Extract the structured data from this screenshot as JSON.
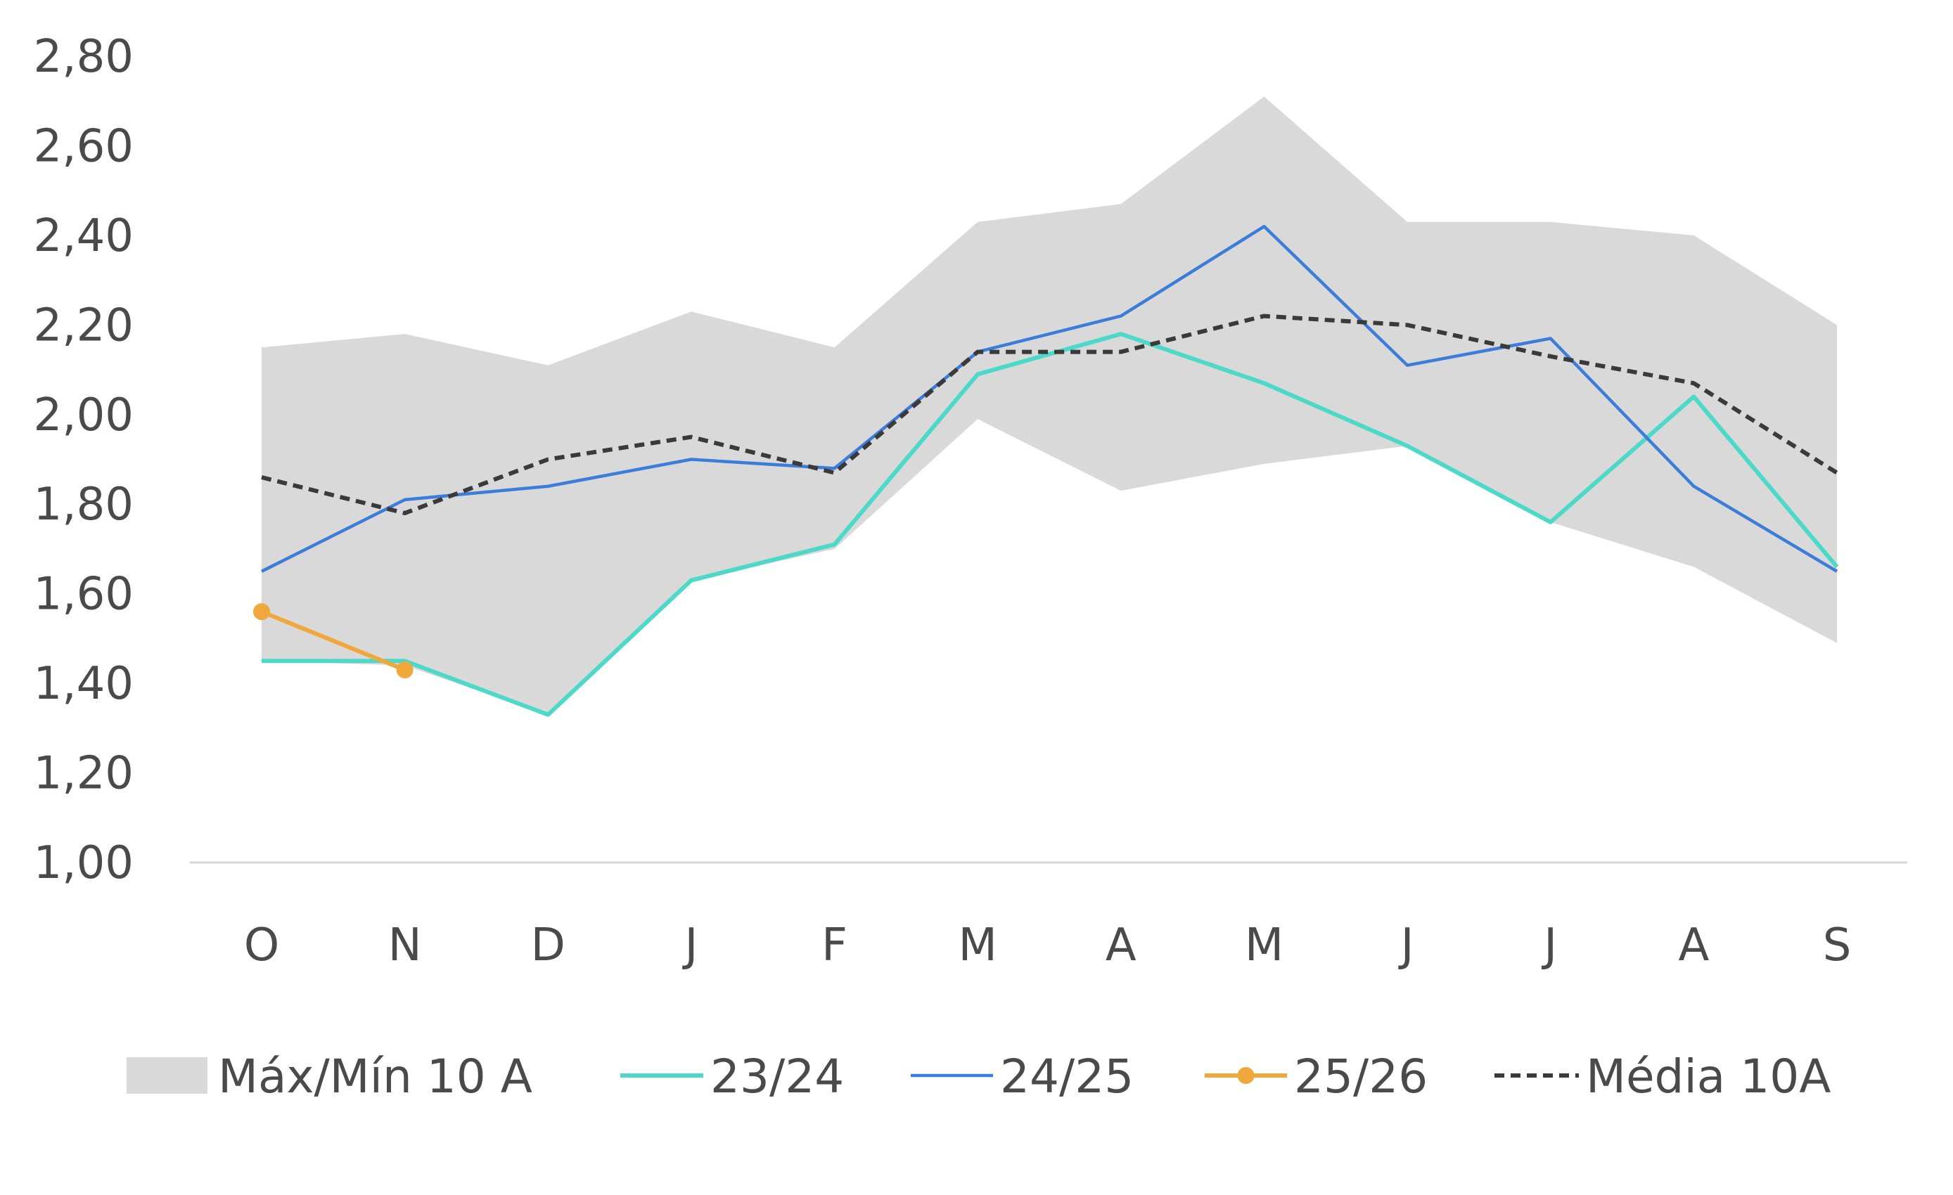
{
  "chart_data": {
    "type": "line",
    "title": "",
    "xlabel": "",
    "ylabel": "",
    "categories": [
      "O",
      "N",
      "D",
      "J",
      "F",
      "M",
      "A",
      "M",
      "J",
      "J",
      "A",
      "S"
    ],
    "ylim": [
      1.0,
      2.8
    ],
    "yticks": [
      1.0,
      1.2,
      1.4,
      1.6,
      1.8,
      2.0,
      2.2,
      2.4,
      2.6,
      2.8
    ],
    "ytick_labels": [
      "1,00",
      "1,20",
      "1,40",
      "1,60",
      "1,80",
      "2,00",
      "2,20",
      "2,40",
      "2,60",
      "2,80"
    ],
    "grid": false,
    "legend_position": "bottom",
    "band": {
      "name": "Máx/Mín 10 A",
      "color": "#d9d9d9",
      "max": [
        2.15,
        2.18,
        2.11,
        2.23,
        2.15,
        2.43,
        2.47,
        2.71,
        2.43,
        2.43,
        2.4,
        2.2
      ],
      "min": [
        1.45,
        1.44,
        1.33,
        1.63,
        1.7,
        1.99,
        1.83,
        1.89,
        1.93,
        1.76,
        1.66,
        1.49
      ]
    },
    "series": [
      {
        "name": "23/24",
        "color": "#4dd9c9",
        "style": "solid",
        "values": [
          1.45,
          1.45,
          1.33,
          1.63,
          1.71,
          2.09,
          2.18,
          2.07,
          1.93,
          1.76,
          2.04,
          1.66
        ]
      },
      {
        "name": "24/25",
        "color": "#3b7dd8",
        "style": "solid",
        "values": [
          1.65,
          1.81,
          1.84,
          1.9,
          1.88,
          2.14,
          2.22,
          2.42,
          2.11,
          2.17,
          1.84,
          1.65
        ]
      },
      {
        "name": "25/26",
        "color": "#f0a83c",
        "style": "markers",
        "values": [
          1.56,
          1.43,
          null,
          null,
          null,
          null,
          null,
          null,
          null,
          null,
          null,
          null
        ]
      },
      {
        "name": "Média 10A",
        "color": "#3a3a3a",
        "style": "dashed",
        "values": [
          1.86,
          1.78,
          1.9,
          1.95,
          1.87,
          2.14,
          2.14,
          2.22,
          2.2,
          2.13,
          2.07,
          1.87
        ]
      }
    ]
  }
}
